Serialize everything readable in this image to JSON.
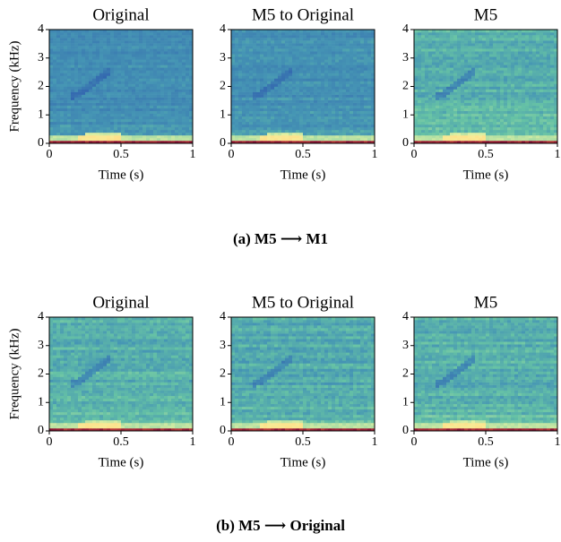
{
  "chart_data": [
    {
      "type": "spectrogram",
      "title": "Original",
      "xlabel": "Time (s)",
      "ylabel": "Frequency (kHz)",
      "xlim": [
        0,
        1
      ],
      "xticks": [
        0,
        0.5,
        1
      ],
      "ylim": [
        0,
        4
      ],
      "yticks": [
        0,
        1,
        2,
        3,
        4
      ]
    },
    {
      "type": "spectrogram",
      "title": "M5 to Original",
      "xlabel": "Time (s)",
      "xlim": [
        0,
        1
      ],
      "xticks": [
        0,
        0.5,
        1
      ],
      "ylim": [
        0,
        4
      ],
      "yticks": [
        0,
        1,
        2,
        3,
        4
      ]
    },
    {
      "type": "spectrogram",
      "title": "M5",
      "xlabel": "Time (s)",
      "xlim": [
        0,
        1
      ],
      "xticks": [
        0,
        0.5,
        1
      ],
      "ylim": [
        0,
        4
      ],
      "yticks": [
        0,
        1,
        2,
        3,
        4
      ]
    },
    {
      "type": "spectrogram",
      "title": "Original",
      "xlabel": "Time (s)",
      "ylabel": "Frequency (kHz)",
      "xlim": [
        0,
        1
      ],
      "xticks": [
        0,
        0.5,
        1
      ],
      "ylim": [
        0,
        4
      ],
      "yticks": [
        0,
        1,
        2,
        3,
        4
      ]
    },
    {
      "type": "spectrogram",
      "title": "M5 to Original",
      "xlabel": "Time (s)",
      "xlim": [
        0,
        1
      ],
      "xticks": [
        0,
        0.5,
        1
      ],
      "ylim": [
        0,
        4
      ],
      "yticks": [
        0,
        1,
        2,
        3,
        4
      ]
    },
    {
      "type": "spectrogram",
      "title": "M5",
      "xlabel": "Time (s)",
      "xlim": [
        0,
        1
      ],
      "xticks": [
        0,
        0.5,
        1
      ],
      "ylim": [
        0,
        4
      ],
      "yticks": [
        0,
        1,
        2,
        3,
        4
      ]
    }
  ],
  "captions": [
    "(a) M5 ⟶ M1",
    "(b) M5 ⟶ Original"
  ]
}
